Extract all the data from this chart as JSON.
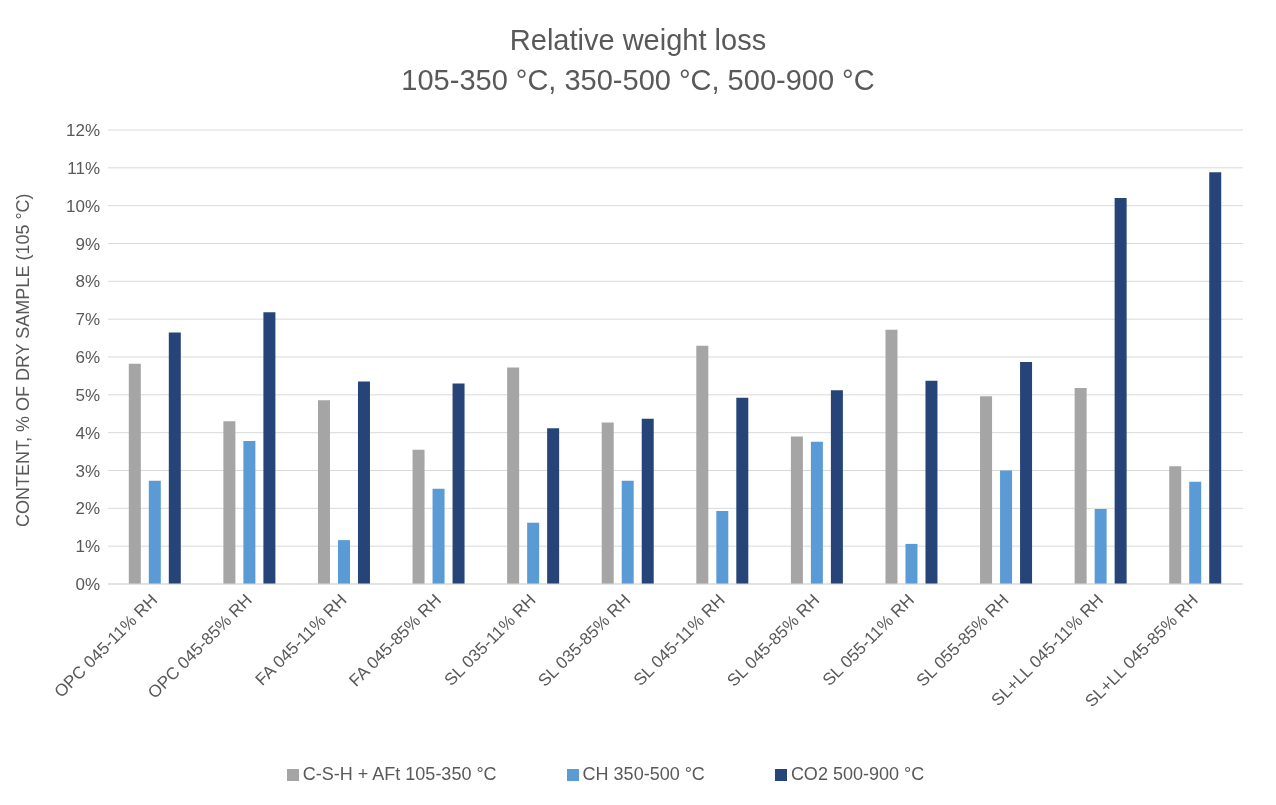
{
  "chart_data": {
    "type": "bar",
    "title": "Relative weight loss",
    "subtitle": "105-350 °C, 350-500 °C, 500-900 °C",
    "ylabel": "CONTENT, % OF DRY SAMPLE (105 °C)",
    "categories": [
      "OPC 045-11% RH",
      "OPC 045-85% RH",
      "FA 045-11% RH",
      "FA 045-85% RH",
      "SL 035-11% RH",
      "SL 035-85% RH",
      "SL 045-11% RH",
      "SL 045-85% RH",
      "SL 055-11% RH",
      "SL 055-85% RH",
      "SL+LL 045-11% RH",
      "SL+LL 045-85% RH"
    ],
    "series": [
      {
        "name": "C-S-H + AFt 105-350 °C",
        "color": "#a5a5a5",
        "values": [
          5.82,
          4.3,
          4.86,
          3.55,
          5.72,
          4.27,
          6.3,
          3.9,
          6.72,
          4.96,
          5.18,
          3.11
        ]
      },
      {
        "name": "CH 350-500 °C",
        "color": "#5b9bd5",
        "values": [
          2.73,
          3.78,
          1.16,
          2.52,
          1.62,
          2.73,
          1.93,
          3.76,
          1.06,
          3.0,
          1.98,
          2.7
        ]
      },
      {
        "name": "CO2 500-900 °C",
        "color": "#264478",
        "values": [
          6.65,
          7.18,
          5.35,
          5.3,
          4.12,
          4.37,
          4.92,
          5.12,
          5.37,
          5.87,
          10.2,
          10.88
        ]
      }
    ],
    "ylim": [
      0,
      12
    ],
    "yticks": [
      {
        "value": 0,
        "label": "0%"
      },
      {
        "value": 1,
        "label": "1%"
      },
      {
        "value": 2,
        "label": "2%"
      },
      {
        "value": 3,
        "label": "3%"
      },
      {
        "value": 4,
        "label": "4%"
      },
      {
        "value": 5,
        "label": "5%"
      },
      {
        "value": 6,
        "label": "6%"
      },
      {
        "value": 7,
        "label": "7%"
      },
      {
        "value": 8,
        "label": "8%"
      },
      {
        "value": 9,
        "label": "9%"
      },
      {
        "value": 10,
        "label": "10%"
      },
      {
        "value": 11,
        "label": "11%"
      },
      {
        "value": 12,
        "label": "12%"
      }
    ],
    "grid": "y",
    "legend": "bottom"
  }
}
